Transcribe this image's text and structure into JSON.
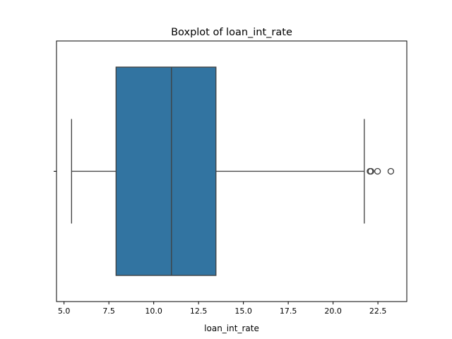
{
  "chart_data": {
    "type": "box",
    "title": "Boxplot of loan_int_rate",
    "xlabel": "loan_int_rate",
    "ylabel": "",
    "orientation": "horizontal",
    "xlim": [
      4.58,
      24.11
    ],
    "xticks": [
      5.0,
      7.5,
      10.0,
      12.5,
      15.0,
      17.5,
      20.0,
      22.5
    ],
    "xtick_labels": [
      "5.0",
      "7.5",
      "10.0",
      "12.5",
      "15.0",
      "17.5",
      "20.0",
      "22.5"
    ],
    "categories": [
      ""
    ],
    "boxes": [
      {
        "whisker_low": 5.42,
        "q1": 7.9,
        "median": 10.99,
        "q3": 13.47,
        "whisker_high": 21.74,
        "outliers": [
          22.06,
          22.11,
          22.48,
          23.22
        ]
      }
    ],
    "box_color": "#3274a1",
    "line_color": "#3f3f3f",
    "grid": false,
    "legend": "none"
  }
}
